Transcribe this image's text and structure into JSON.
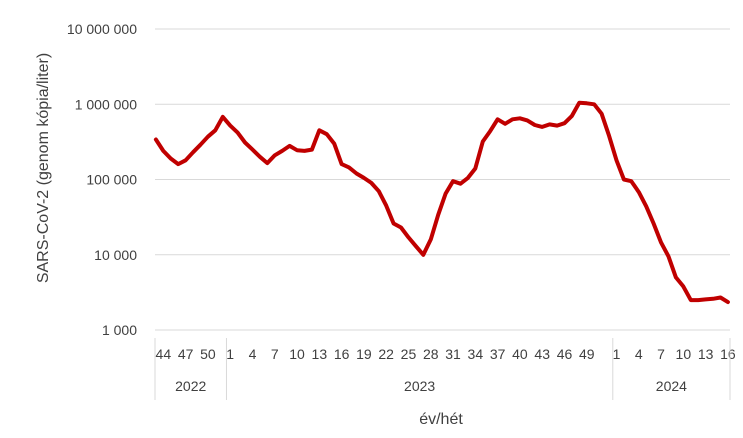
{
  "chart_data": {
    "type": "line",
    "title": "",
    "ylabel": "SARS-CoV-2 (genom kópia/liter)",
    "xlabel": "év/hét",
    "yscale": "log",
    "ylim": [
      1000,
      10000000
    ],
    "grid": "horizontal",
    "legend": "none",
    "line_color": "#C00000",
    "grid_color": "#D9D9D9",
    "yticks": [
      {
        "value": 10000000,
        "label": "10 000 000"
      },
      {
        "value": 1000000,
        "label": "1 000 000"
      },
      {
        "value": 100000,
        "label": "100 000"
      },
      {
        "value": 10000,
        "label": "10 000"
      },
      {
        "value": 1000,
        "label": "1 000"
      }
    ],
    "week_labels": [
      "44",
      "47",
      "50",
      "1",
      "4",
      "7",
      "10",
      "13",
      "16",
      "19",
      "22",
      "25",
      "28",
      "31",
      "34",
      "37",
      "40",
      "43",
      "46",
      "49",
      "1",
      "4",
      "7",
      "10",
      "13",
      "16"
    ],
    "years": [
      "2022",
      "2023",
      "2024"
    ],
    "x": [
      "2022/43",
      "2022/44",
      "2022/45",
      "2022/46",
      "2022/47",
      "2022/48",
      "2022/49",
      "2022/50",
      "2022/51",
      "2022/52",
      "2023/1",
      "2023/2",
      "2023/3",
      "2023/4",
      "2023/5",
      "2023/6",
      "2023/7",
      "2023/8",
      "2023/9",
      "2023/10",
      "2023/11",
      "2023/12",
      "2023/13",
      "2023/14",
      "2023/15",
      "2023/16",
      "2023/17",
      "2023/18",
      "2023/19",
      "2023/20",
      "2023/21",
      "2023/22",
      "2023/23",
      "2023/24",
      "2023/25",
      "2023/26",
      "2023/27",
      "2023/28",
      "2023/29",
      "2023/30",
      "2023/31",
      "2023/32",
      "2023/33",
      "2023/34",
      "2023/35",
      "2023/36",
      "2023/37",
      "2023/38",
      "2023/39",
      "2023/40",
      "2023/41",
      "2023/42",
      "2023/43",
      "2023/44",
      "2023/45",
      "2023/46",
      "2023/47",
      "2023/48",
      "2023/49",
      "2023/50",
      "2023/51",
      "2023/52",
      "2024/1",
      "2024/2",
      "2024/3",
      "2024/4",
      "2024/5",
      "2024/6",
      "2024/7",
      "2024/8",
      "2024/9",
      "2024/10",
      "2024/11",
      "2024/12",
      "2024/13",
      "2024/14",
      "2024/15",
      "2024/16"
    ],
    "series": [
      {
        "values": [
          340000,
          240000,
          190000,
          160000,
          180000,
          230000,
          290000,
          370000,
          450000,
          680000,
          520000,
          420000,
          310000,
          250000,
          200000,
          165000,
          210000,
          240000,
          280000,
          245000,
          240000,
          250000,
          450000,
          400000,
          300000,
          160000,
          145000,
          120000,
          105000,
          90000,
          70000,
          45000,
          26000,
          23000,
          17000,
          13000,
          10000,
          16000,
          34000,
          65000,
          95000,
          88000,
          105000,
          140000,
          320000,
          440000,
          630000,
          550000,
          630000,
          650000,
          610000,
          530000,
          500000,
          540000,
          520000,
          560000,
          700000,
          1050000,
          1030000,
          1000000,
          750000,
          380000,
          180000,
          100000,
          95000,
          68000,
          44000,
          26000,
          14500,
          9500,
          5000,
          3800,
          2500,
          2500,
          2550,
          2600,
          2700,
          2350
        ]
      }
    ]
  }
}
